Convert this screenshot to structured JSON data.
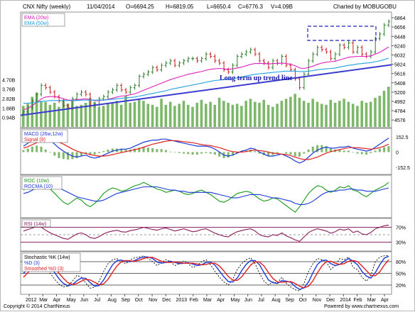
{
  "header": {
    "title": "CNX Nifty (weekly)",
    "date": "11/04/2014",
    "open": "O=6694.25",
    "high": "H=6819.05",
    "low": "L=6650.4",
    "close": "C=6776.3",
    "volume": "V=4.09B",
    "charted_by": "Charted by MOBUGOBU"
  },
  "footer": {
    "copyright": "Copyright © 2014 ChartNexus",
    "powered": "Powered by www.chartnexus.com"
  },
  "annotation": "Long term up trend line",
  "colors": {
    "price_up": "#2a7a2a",
    "price_down": "#c81e1e",
    "ema20": "#e020c0",
    "ema50": "#20a0e0",
    "trendline": "#3b3bd0",
    "volume": "#7db86a",
    "macd": "#1a3ad8",
    "signal": "#e02020",
    "roc": "#1a9a1a",
    "rocma": "#1a3ad8",
    "rsi": "#8a1a5a",
    "stoch_k": "#1a3ad8",
    "stoch_d": "#e02020",
    "panel_line": "#8a2a6a"
  },
  "chart_data": {
    "type": "financial",
    "x_labels": [
      "2012",
      "Mar",
      "Apr",
      "May",
      "Jun",
      "Jul",
      "Aug",
      "Sep",
      "Oct",
      "Nov",
      "Dec",
      "2013",
      "Feb",
      "Mar",
      "Apr",
      "May",
      "Jun",
      "Jul",
      "Aug",
      "Sep",
      "Oct",
      "Nov",
      "Dec",
      "2014",
      "Feb",
      "Mar",
      "Apr"
    ],
    "price": {
      "legend": [
        "EMA (20w)",
        "EMA (50w)"
      ],
      "y_ticks": [
        "6864",
        "6656",
        "6448",
        "6240",
        "6032",
        "5824",
        "5616",
        "5408",
        "5200",
        "4992",
        "4784",
        "4576"
      ],
      "ylim": [
        4420,
        6960
      ],
      "close": [
        4760,
        4850,
        5000,
        5150,
        5350,
        5300,
        5200,
        5100,
        5000,
        4900,
        4850,
        5050,
        5150,
        5200,
        5150,
        4900,
        4920,
        5050,
        5100,
        5200,
        5250,
        5350,
        5250,
        5200,
        5300,
        5350,
        5550,
        5600,
        5650,
        5750,
        5700,
        5800,
        5850,
        5900,
        5800,
        5850,
        5900,
        5950,
        5950,
        5900,
        5950,
        6050,
        6000,
        5900,
        5850,
        5700,
        5650,
        5800,
        6000,
        6050,
        6100,
        6150,
        6050,
        5900,
        5850,
        5750,
        5900,
        5850,
        6000,
        5800,
        5700,
        5500,
        5300,
        5600,
        5900,
        6050,
        6200,
        6150,
        6100,
        5950,
        6050,
        6250,
        6200,
        6300,
        6100,
        6200,
        6050,
        6000,
        6100,
        6400,
        6500,
        6700,
        6780
      ],
      "ema20": [
        4800,
        4840,
        4900,
        4970,
        5050,
        5090,
        5100,
        5100,
        5080,
        5050,
        5020,
        5020,
        5030,
        5040,
        5050,
        5030,
        5010,
        5010,
        5020,
        5040,
        5060,
        5090,
        5110,
        5120,
        5140,
        5160,
        5200,
        5240,
        5280,
        5320,
        5360,
        5400,
        5440,
        5480,
        5510,
        5540,
        5570,
        5600,
        5620,
        5640,
        5660,
        5690,
        5710,
        5720,
        5730,
        5720,
        5710,
        5720,
        5740,
        5760,
        5790,
        5820,
        5840,
        5840,
        5840,
        5830,
        5840,
        5840,
        5850,
        5840,
        5820,
        5790,
        5740,
        5730,
        5750,
        5780,
        5820,
        5850,
        5870,
        5880,
        5890,
        5920,
        5950,
        5980,
        5990,
        6000,
        6000,
        6000,
        6010,
        6050,
        6090,
        6150,
        6210
      ],
      "ema50": [
        4950,
        4950,
        4960,
        4970,
        4990,
        5000,
        5010,
        5010,
        5010,
        5010,
        5010,
        5010,
        5010,
        5020,
        5020,
        5020,
        5020,
        5020,
        5020,
        5030,
        5040,
        5050,
        5060,
        5070,
        5080,
        5090,
        5110,
        5130,
        5150,
        5170,
        5190,
        5210,
        5230,
        5260,
        5280,
        5300,
        5320,
        5340,
        5360,
        5380,
        5400,
        5420,
        5440,
        5460,
        5470,
        5480,
        5490,
        5500,
        5520,
        5540,
        5560,
        5580,
        5600,
        5610,
        5620,
        5630,
        5640,
        5650,
        5660,
        5670,
        5670,
        5670,
        5660,
        5660,
        5670,
        5680,
        5700,
        5710,
        5720,
        5730,
        5740,
        5760,
        5780,
        5800,
        5810,
        5830,
        5840,
        5850,
        5860,
        5880,
        5900,
        5930,
        5960
      ],
      "trendline": [
        {
          "x_label": "2012",
          "y": 4680
        },
        {
          "x_label": "Apr",
          "y": 5810
        }
      ]
    },
    "volume": {
      "y_ticks": [
        "4.70B",
        "3.76B",
        "2.82B",
        "1.88B",
        "0.94B"
      ],
      "ylim": [
        0,
        4.8
      ],
      "values": [
        2.1,
        2.3,
        3.0,
        3.4,
        2.6,
        2.5,
        2.2,
        2.4,
        2.0,
        2.7,
        2.3,
        2.6,
        2.1,
        2.2,
        2.4,
        2.9,
        2.5,
        2.0,
        2.1,
        2.3,
        2.4,
        2.6,
        2.2,
        3.1,
        2.4,
        2.5,
        2.7,
        2.6,
        2.3,
        2.2,
        2.0,
        2.8,
        2.2,
        2.5,
        2.1,
        2.3,
        2.6,
        2.2,
        2.0,
        2.4,
        2.7,
        2.3,
        2.5,
        2.2,
        2.9,
        2.6,
        2.4,
        2.2,
        2.3,
        2.1,
        2.6,
        2.8,
        2.5,
        2.4,
        2.7,
        2.2,
        2.0,
        2.3,
        2.6,
        2.8,
        3.0,
        3.3,
        2.9,
        2.6,
        2.4,
        2.8,
        2.5,
        2.3,
        2.2,
        2.7,
        2.4,
        2.6,
        2.8,
        2.5,
        2.3,
        2.1,
        2.6,
        2.4,
        2.5,
        2.9,
        3.1,
        3.6,
        4.0
      ]
    },
    "macd": {
      "legend": [
        "MACD (26w,12w)",
        "Signal (9)"
      ],
      "y_ticks": [
        "152.5",
        "0",
        "-152.5"
      ],
      "ylim": [
        -210,
        210
      ],
      "macd": [
        60,
        90,
        130,
        160,
        170,
        150,
        120,
        80,
        40,
        10,
        -20,
        -40,
        -50,
        -40,
        -30,
        -50,
        -60,
        -50,
        -30,
        -10,
        10,
        20,
        30,
        30,
        40,
        60,
        80,
        100,
        110,
        120,
        120,
        130,
        130,
        120,
        110,
        100,
        90,
        80,
        70,
        60,
        60,
        60,
        50,
        30,
        0,
        -30,
        -40,
        -30,
        -10,
        10,
        20,
        40,
        30,
        0,
        -20,
        -40,
        -40,
        -30,
        -20,
        -40,
        -60,
        -90,
        -110,
        -90,
        -50,
        -10,
        20,
        40,
        50,
        40,
        40,
        50,
        50,
        60,
        40,
        30,
        20,
        10,
        20,
        50,
        80,
        110,
        140
      ],
      "signal": [
        40,
        55,
        75,
        95,
        115,
        125,
        125,
        115,
        100,
        80,
        55,
        30,
        10,
        -5,
        -15,
        -25,
        -35,
        -40,
        -40,
        -35,
        -25,
        -15,
        -5,
        5,
        15,
        25,
        35,
        50,
        65,
        80,
        90,
        100,
        110,
        115,
        115,
        110,
        105,
        100,
        95,
        85,
        75,
        70,
        65,
        55,
        45,
        30,
        15,
        5,
        0,
        0,
        5,
        15,
        20,
        15,
        10,
        0,
        -10,
        -15,
        -20,
        -25,
        -35,
        -50,
        -65,
        -75,
        -75,
        -65,
        -50,
        -30,
        -10,
        5,
        15,
        25,
        35,
        45,
        45,
        45,
        40,
        35,
        30,
        35,
        45,
        60,
        80
      ]
    },
    "roc": {
      "legend": [
        "ROC (10w)",
        "ROCMA (10)"
      ],
      "roc": [
        5,
        8,
        12,
        15,
        14,
        10,
        6,
        2,
        -2,
        -6,
        -8,
        -5,
        -2,
        -4,
        -8,
        -10,
        -7,
        -3,
        2,
        5,
        7,
        6,
        4,
        5,
        7,
        9,
        10,
        12,
        10,
        8,
        6,
        5,
        3,
        4,
        5,
        4,
        2,
        1,
        2,
        4,
        5,
        3,
        1,
        -2,
        -5,
        -6,
        -4,
        -1,
        2,
        3,
        4,
        3,
        0,
        -3,
        -5,
        -4,
        -2,
        -3,
        -6,
        -9,
        -12,
        -15,
        -10,
        -4,
        2,
        6,
        9,
        8,
        5,
        3,
        5,
        8,
        7,
        9,
        5,
        4,
        1,
        -1,
        2,
        5,
        7,
        9,
        12
      ],
      "rocma": [
        2,
        3,
        5,
        7,
        9,
        10,
        10,
        9,
        7,
        5,
        3,
        1,
        -1,
        -2,
        -3,
        -4,
        -5,
        -5,
        -4,
        -2,
        0,
        2,
        3,
        4,
        5,
        6,
        7,
        8,
        8,
        8,
        8,
        7,
        6,
        5,
        5,
        4,
        4,
        3,
        3,
        3,
        3,
        3,
        3,
        2,
        1,
        0,
        -1,
        -2,
        -2,
        -1,
        0,
        1,
        1,
        1,
        0,
        -1,
        -2,
        -2,
        -3,
        -4,
        -5,
        -7,
        -8,
        -8,
        -7,
        -5,
        -2,
        1,
        3,
        4,
        4,
        5,
        5,
        6,
        6,
        5,
        5,
        4,
        4,
        4,
        5,
        6,
        7
      ],
      "ylim": [
        -18,
        16
      ]
    },
    "rsi": {
      "legend": [
        "RSI (14w)"
      ],
      "y_ticks": [
        "70%",
        "30%"
      ],
      "ylim": [
        10,
        90
      ],
      "values": [
        60,
        64,
        68,
        72,
        70,
        62,
        55,
        50,
        45,
        40,
        38,
        45,
        52,
        55,
        50,
        42,
        40,
        45,
        52,
        57,
        60,
        62,
        58,
        57,
        61,
        63,
        66,
        70,
        67,
        64,
        62,
        66,
        68,
        64,
        60,
        63,
        66,
        62,
        58,
        60,
        64,
        66,
        60,
        54,
        50,
        46,
        44,
        52,
        58,
        61,
        64,
        66,
        60,
        50,
        46,
        44,
        50,
        48,
        55,
        47,
        42,
        36,
        32,
        44,
        56,
        62,
        66,
        63,
        60,
        54,
        58,
        65,
        62,
        66,
        56,
        60,
        52,
        50,
        56,
        66,
        70,
        74,
        76
      ]
    },
    "stochastic": {
      "legend": [
        "Stochastic %K (14w)",
        "%D (3)",
        "Smoothed %D (3)"
      ],
      "y_ticks": [
        "80%",
        "50%",
        "20%"
      ],
      "ylim": [
        0,
        100
      ],
      "k": [
        60,
        75,
        88,
        92,
        85,
        70,
        50,
        35,
        22,
        15,
        18,
        30,
        45,
        40,
        25,
        12,
        15,
        30,
        55,
        75,
        85,
        88,
        80,
        75,
        85,
        90,
        92,
        95,
        88,
        80,
        70,
        78,
        85,
        80,
        70,
        75,
        82,
        75,
        65,
        70,
        80,
        85,
        72,
        55,
        40,
        28,
        20,
        35,
        60,
        75,
        85,
        90,
        75,
        50,
        30,
        20,
        28,
        25,
        40,
        25,
        15,
        8,
        5,
        25,
        55,
        75,
        88,
        85,
        80,
        60,
        70,
        88,
        85,
        92,
        65,
        60,
        40,
        30,
        45,
        80,
        92,
        95,
        96
      ],
      "d": [
        50,
        62,
        74,
        85,
        88,
        82,
        68,
        52,
        36,
        24,
        18,
        21,
        31,
        38,
        37,
        26,
        17,
        19,
        33,
        53,
        72,
        83,
        84,
        81,
        80,
        83,
        89,
        92,
        92,
        88,
        79,
        76,
        78,
        81,
        78,
        75,
        76,
        77,
        74,
        70,
        72,
        78,
        79,
        71,
        56,
        41,
        29,
        28,
        38,
        57,
        73,
        83,
        83,
        72,
        52,
        33,
        26,
        24,
        31,
        30,
        27,
        16,
        9,
        13,
        28,
        52,
        73,
        83,
        84,
        75,
        70,
        73,
        81,
        88,
        81,
        72,
        55,
        43,
        38,
        52,
        72,
        89,
        94
      ],
      "smoothed_d": [
        40,
        52,
        65,
        77,
        85,
        85,
        78,
        65,
        50,
        37,
        26,
        21,
        24,
        30,
        35,
        33,
        27,
        21,
        23,
        35,
        53,
        69,
        80,
        83,
        82,
        81,
        84,
        88,
        91,
        91,
        86,
        81,
        78,
        78,
        79,
        78,
        76,
        76,
        76,
        74,
        72,
        73,
        76,
        76,
        69,
        56,
        42,
        33,
        32,
        41,
        56,
        71,
        80,
        79,
        69,
        52,
        37,
        28,
        27,
        28,
        29,
        24,
        17,
        13,
        17,
        31,
        51,
        69,
        80,
        81,
        76,
        73,
        75,
        81,
        83,
        80,
        69,
        57,
        45,
        44,
        54,
        71,
        85
      ]
    }
  }
}
